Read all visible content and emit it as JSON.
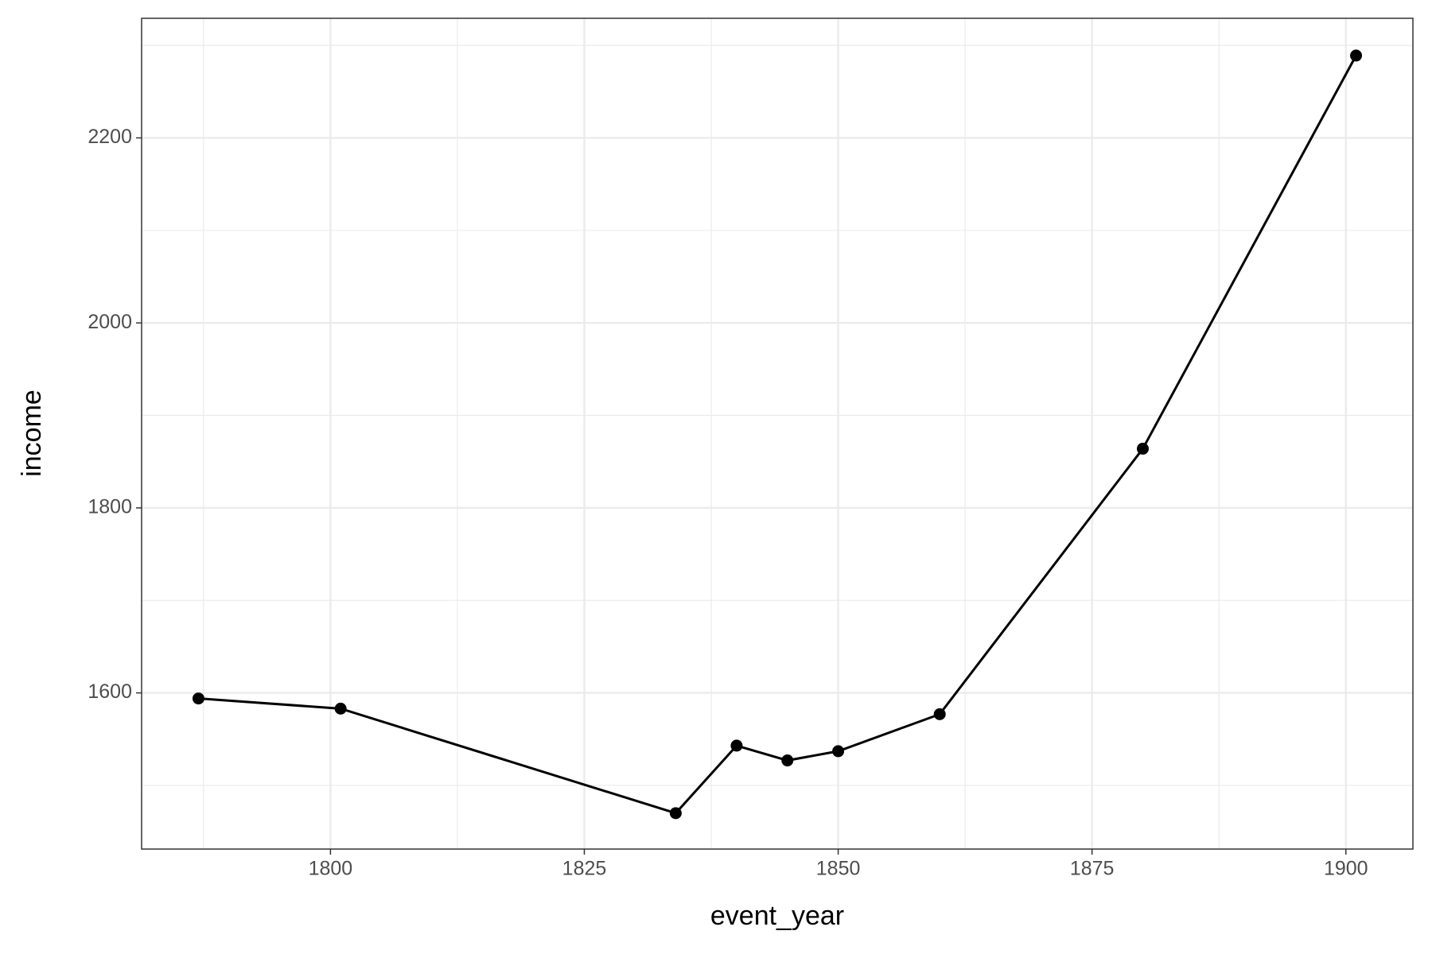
{
  "chart_data": {
    "type": "line",
    "x_label": "event_year",
    "y_label": "income",
    "x": [
      1787,
      1801,
      1834,
      1840,
      1845,
      1850,
      1860,
      1880,
      1901
    ],
    "series": [
      {
        "color": "#000000",
        "values": [
          1594,
          1583,
          1470,
          1543,
          1527,
          1537,
          1577,
          1864,
          2289
        ]
      }
    ],
    "xlim": [
      1781.4,
      1906.6
    ],
    "xticks": [
      1800,
      1825,
      1850,
      1875,
      1900
    ],
    "ylim": [
      1431.2,
      2329.3
    ],
    "yticks": [
      1600,
      1800,
      2000,
      2200
    ],
    "grid": true
  }
}
